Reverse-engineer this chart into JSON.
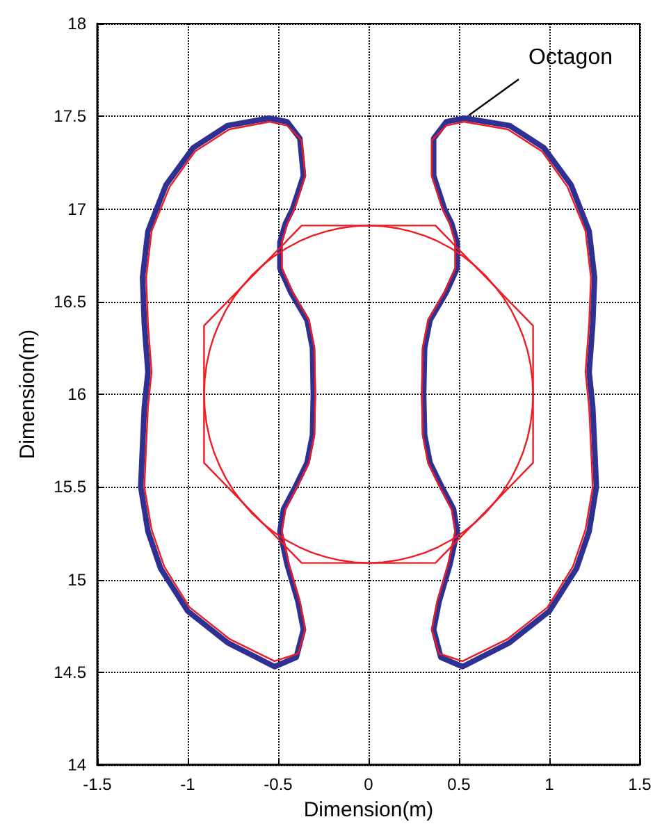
{
  "chart_data": {
    "type": "line",
    "xlabel": "Dimension(m)",
    "ylabel": "Dimension(m)",
    "xlim": [
      -1.5,
      1.5
    ],
    "xticks": [
      -1.5,
      -1,
      -0.5,
      0,
      0.5,
      1,
      1.5
    ],
    "ylim": [
      14,
      18
    ],
    "yticks": [
      14,
      14.5,
      15,
      15.5,
      16,
      16.5,
      17,
      17.5,
      18
    ],
    "grid": true,
    "annotations": [
      "Octagon"
    ]
  }
}
